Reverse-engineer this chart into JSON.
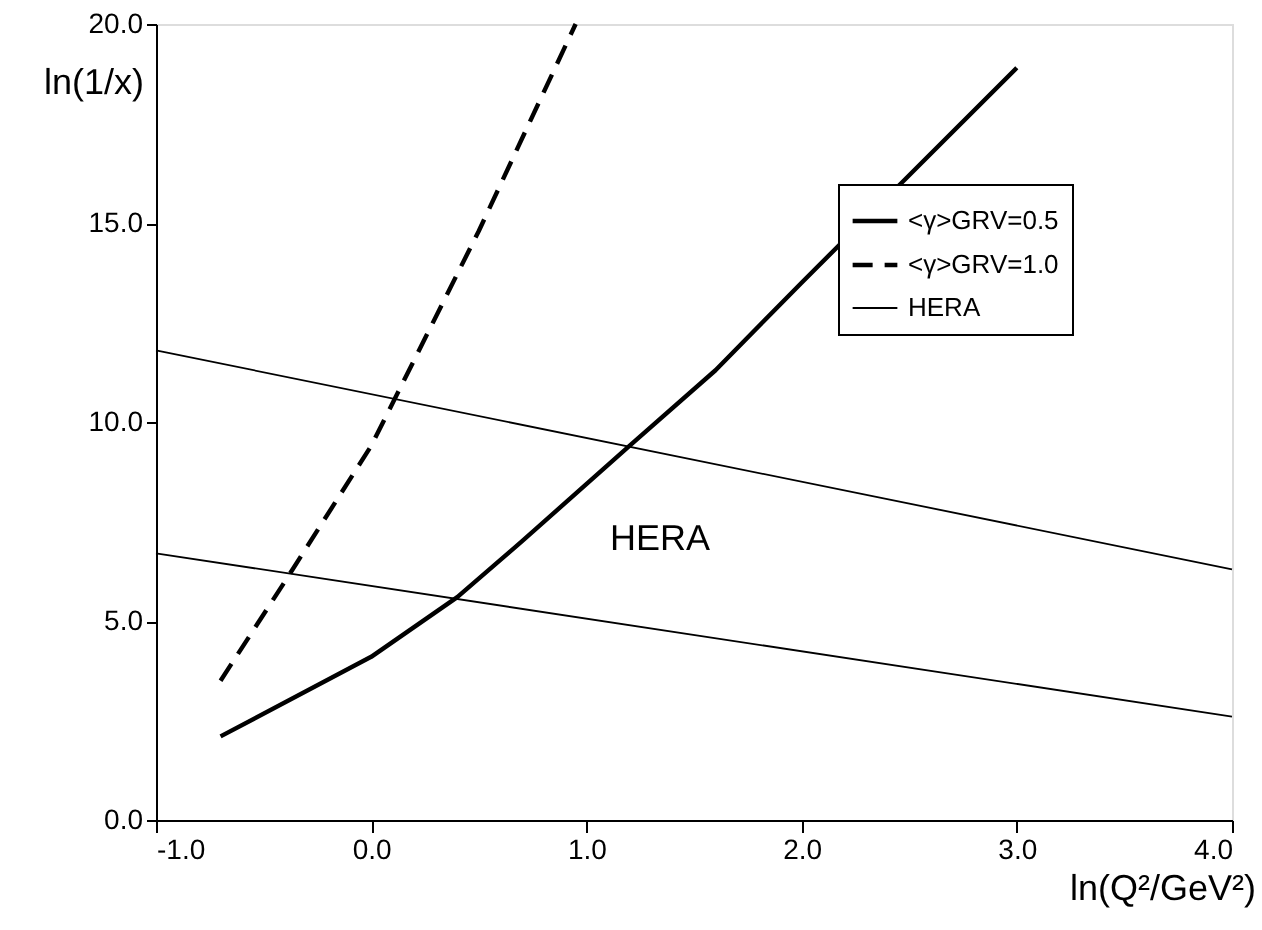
{
  "chart_data": {
    "type": "line",
    "xlabel": "ln(Q²/GeV²)",
    "ylabel": "ln(1/x)",
    "xlim": [
      -1.0,
      4.0
    ],
    "ylim": [
      0.0,
      20.0
    ],
    "xticks": [
      {
        "value": -1,
        "label": "-1.0"
      },
      {
        "value": 0,
        "label": "0.0"
      },
      {
        "value": 1,
        "label": "1.0"
      },
      {
        "value": 2,
        "label": "2.0"
      },
      {
        "value": 3,
        "label": "3.0"
      },
      {
        "value": 4,
        "label": "4.0"
      }
    ],
    "yticks": [
      {
        "value": 0,
        "label": "0.0"
      },
      {
        "value": 5,
        "label": "5.0"
      },
      {
        "value": 10,
        "label": "10.0"
      },
      {
        "value": 15,
        "label": "15.0"
      },
      {
        "value": 20,
        "label": "20.0"
      }
    ],
    "grid": false,
    "legend": "top right",
    "marker": "none",
    "series": [
      {
        "name": "<γ>GRV=0.5",
        "color": "#000000",
        "line_style": "solid",
        "x": [
          -0.7,
          0.0,
          0.4,
          0.7,
          1.2,
          1.6,
          2.0,
          2.5,
          3.0
        ],
        "values": [
          2.1,
          4.1,
          5.6,
          7.0,
          9.4,
          11.3,
          13.5,
          16.2,
          18.9
        ]
      },
      {
        "name": "<γ>GRV=1.0",
        "color": "#000000",
        "line_style": "dashed",
        "x": [
          -0.7,
          -0.4,
          0.0,
          0.5,
          0.95
        ],
        "values": [
          3.5,
          6.0,
          9.4,
          14.8,
          20.0
        ]
      },
      {
        "name": "HERA",
        "color": "#000000",
        "line_style": "solid",
        "x": [
          -1.0,
          4.0
        ],
        "values": [
          11.8,
          6.3
        ]
      },
      {
        "color": "#000000",
        "line_style": "solid",
        "x": [
          -1.0,
          4.0
        ],
        "values": [
          6.7,
          2.6
        ]
      }
    ],
    "annotations": [
      "HERA"
    ]
  }
}
